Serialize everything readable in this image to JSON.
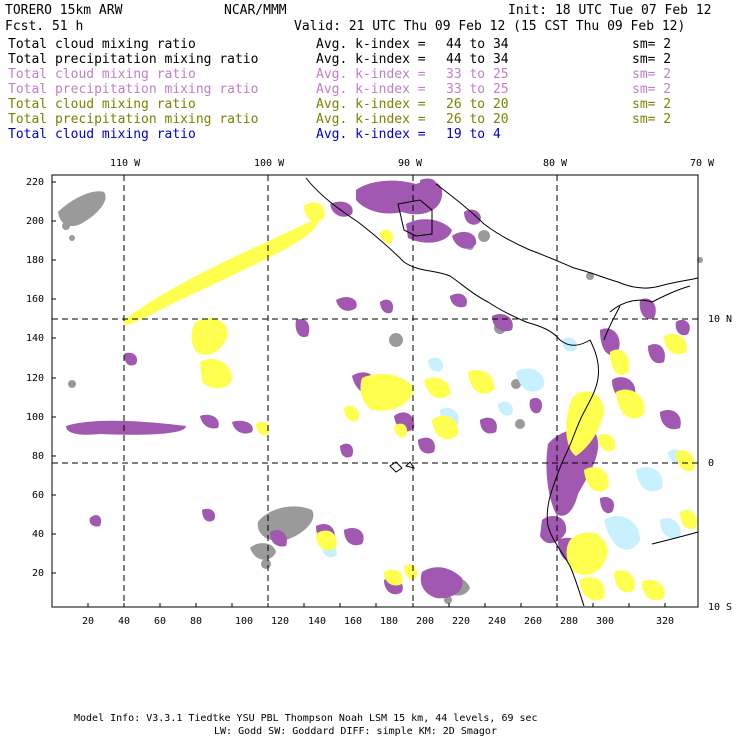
{
  "header": {
    "model": "TORERO  15km ARW",
    "center": "NCAR/MMM",
    "init": "Init: 18 UTC Tue 07 Feb 12",
    "fcst": "Fcst.   51 h",
    "valid": "Valid: 21 UTC Thu 09 Feb 12 (15 CST Thu 09 Feb 12)"
  },
  "legend": [
    {
      "field": "Total cloud mixing ratio",
      "index": "Avg. k-index =",
      "range": "44  to  34",
      "sm": "sm= 2",
      "color": "#000000"
    },
    {
      "field": "Total precipitation mixing ratio",
      "index": "Avg. k-index =",
      "range": "44  to  34",
      "sm": "sm= 2",
      "color": "#000000"
    },
    {
      "field": "Total cloud mixing ratio",
      "index": "Avg. k-index =",
      "range": "33  to  25",
      "sm": "sm= 2",
      "color": "#c080c8"
    },
    {
      "field": "Total precipitation mixing ratio",
      "index": "Avg. k-index =",
      "range": "33  to  25",
      "sm": "sm= 2",
      "color": "#c080c8"
    },
    {
      "field": "Total cloud mixing ratio",
      "index": "Avg. k-index =",
      "range": "26  to  20",
      "sm": "sm= 2",
      "color": "#808000"
    },
    {
      "field": "Total precipitation mixing ratio",
      "index": "Avg. k-index =",
      "range": "26  to  20",
      "sm": "sm= 2",
      "color": "#808000"
    },
    {
      "field": "Total cloud mixing ratio",
      "index": "Avg. k-index =",
      "range": "19  to   4",
      "sm": "",
      "color": "#0000cc"
    }
  ],
  "map": {
    "lon_labels": [
      "110 W",
      "100 W",
      "90 W",
      "80 W",
      "70 W"
    ],
    "lat_labels": [
      "10 N",
      "0",
      "10 S"
    ],
    "x_ticks": [
      "20",
      "40",
      "60",
      "80",
      "100",
      "120",
      "140",
      "160",
      "180",
      "200",
      "220",
      "240",
      "260",
      "280",
      "300",
      "320"
    ],
    "y_ticks": [
      "220",
      "200",
      "180",
      "160",
      "140",
      "120",
      "100",
      "80",
      "60",
      "40",
      "20"
    ],
    "colors": {
      "gray": "#9a9a9a",
      "purple": "#a058b0",
      "yellow": "#ffff50",
      "cyan": "#c8f0ff",
      "coast": "#000000"
    }
  },
  "footer": {
    "line1": "Model Info: V3.3.1   Tiedtke YSU PBL  Thompson    Noah LSM  15 km,   44 levels,   69 sec",
    "line2": "LW: Godd SW: Goddard DIFF: simple KM: 2D Smagor"
  }
}
